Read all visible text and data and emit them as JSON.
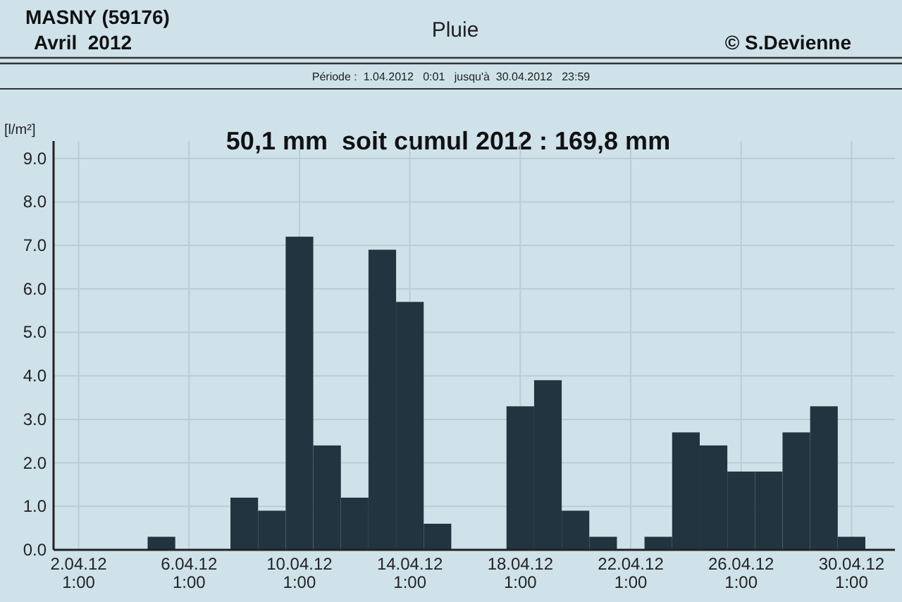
{
  "chart_data": {
    "type": "bar",
    "title": "Pluie",
    "subtitle": "Période :  1.04.2012   0:01   jusqu'à  30.04.2012   23:59",
    "annotations": [
      "MASNY (59176)",
      "Avril  2012",
      "© S.Devienne",
      "50,1 mm  soit cumul 2012 : 169,8 mm"
    ],
    "ylabel": "[l/m²]",
    "categories": [
      "2.04.12\n1:00",
      null,
      null,
      null,
      "6.04.12\n1:00",
      null,
      null,
      null,
      "10.04.12\n1:00",
      null,
      null,
      null,
      "14.04.12\n1:00",
      null,
      null,
      null,
      "18.04.12\n1:00",
      null,
      null,
      null,
      "22.04.12\n1:00",
      null,
      null,
      null,
      "26.04.12\n1:00",
      null,
      null,
      null,
      "30.04.12\n1:00"
    ],
    "values": [
      0,
      0,
      0,
      0.3,
      0,
      0,
      1.2,
      0.9,
      7.2,
      2.4,
      1.2,
      6.9,
      5.7,
      0.6,
      0,
      0,
      3.3,
      3.9,
      0.9,
      0.3,
      0,
      0.3,
      2.7,
      2.4,
      1.8,
      1.8,
      2.7,
      3.3,
      0.3
    ],
    "color": "#22343f",
    "ylim": [
      0,
      9.4
    ],
    "yticks": [
      {
        "value": 0,
        "label": "0.0"
      },
      {
        "value": 1,
        "label": "1.0"
      },
      {
        "value": 2,
        "label": "2.0"
      },
      {
        "value": 3,
        "label": "3.0"
      },
      {
        "value": 4,
        "label": "4.0"
      },
      {
        "value": 5,
        "label": "5.0"
      },
      {
        "value": 6,
        "label": "6.0"
      },
      {
        "value": 7,
        "label": "7.0"
      },
      {
        "value": 8,
        "label": "8.0"
      },
      {
        "value": 9,
        "label": "9.0"
      }
    ],
    "grid": true
  }
}
